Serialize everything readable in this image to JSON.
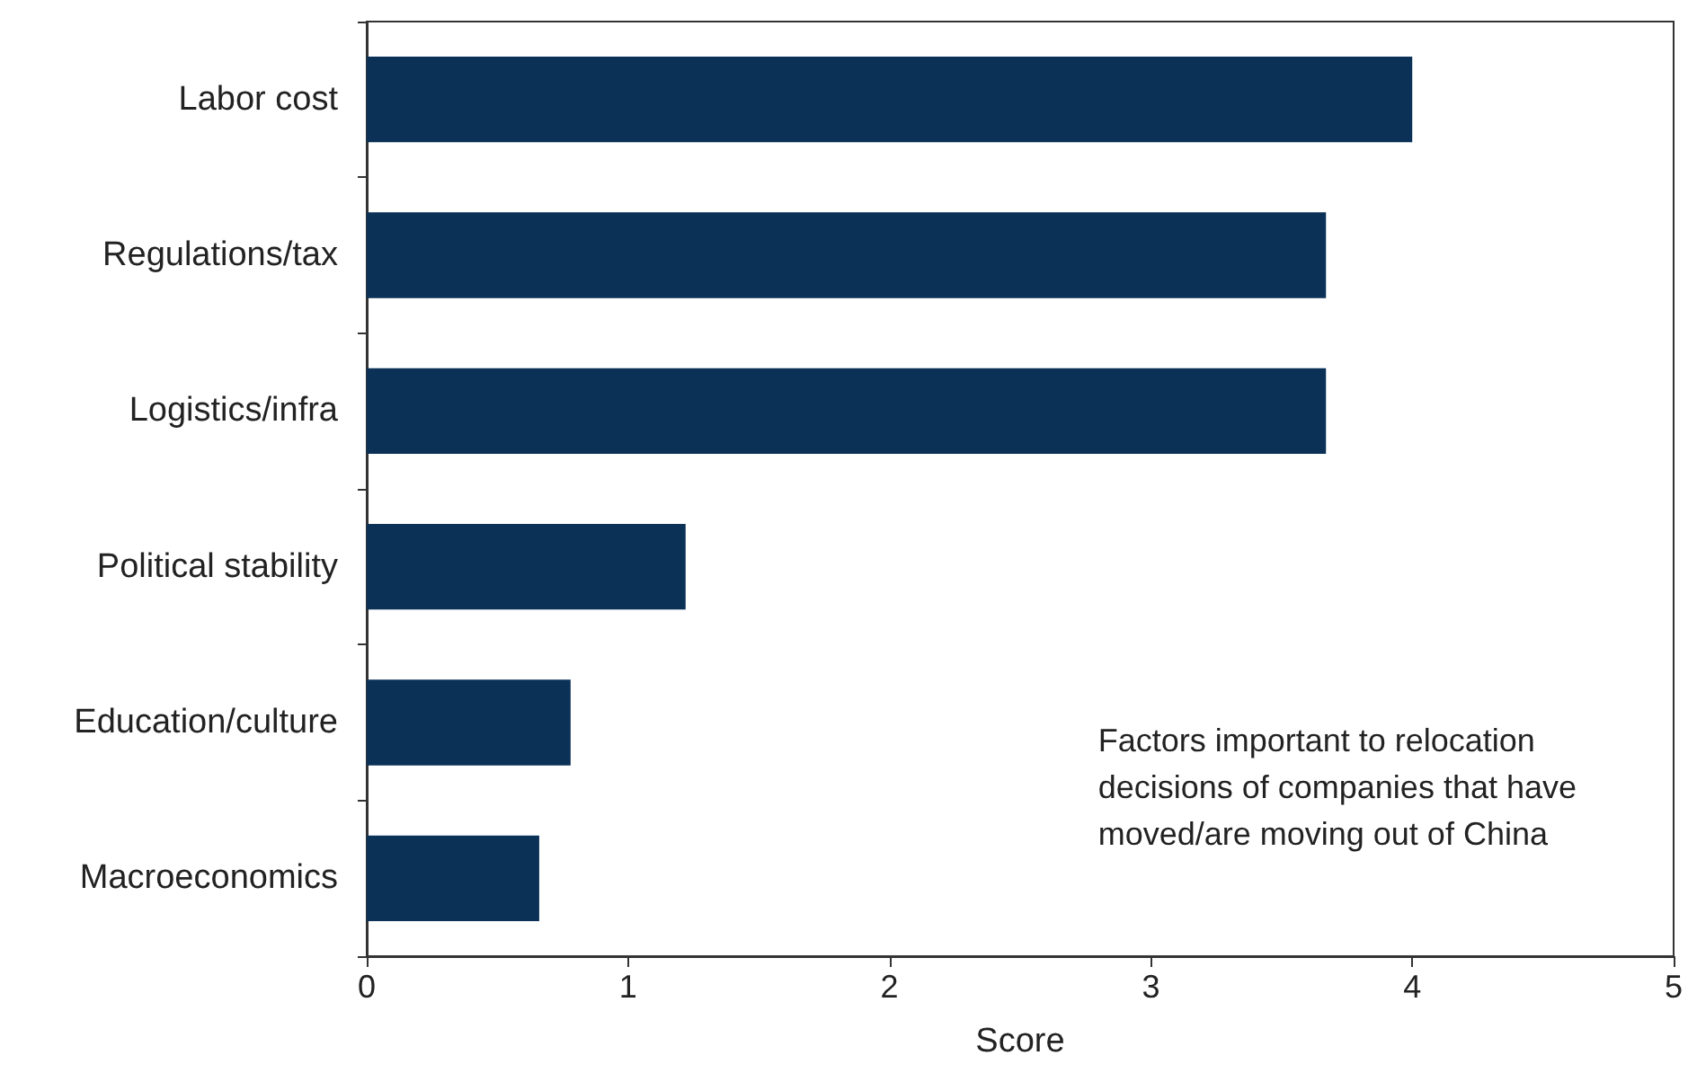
{
  "chart_data": {
    "type": "bar",
    "orientation": "horizontal",
    "categories": [
      "Labor cost",
      "Regulations/tax",
      "Logistics/infra",
      "Political stability",
      "Education/culture",
      "Macroeconomics"
    ],
    "values": [
      4.0,
      3.67,
      3.67,
      1.22,
      0.78,
      0.66
    ],
    "color": "#0b3157",
    "xlim": [
      0,
      5
    ],
    "xticks": [
      0,
      1,
      2,
      3,
      4,
      5
    ],
    "xlabel": "Score",
    "grid": false,
    "annotations": [
      "Factors important to relocation\ndecisions of companies that have\nmoved/are moving out of China"
    ]
  }
}
